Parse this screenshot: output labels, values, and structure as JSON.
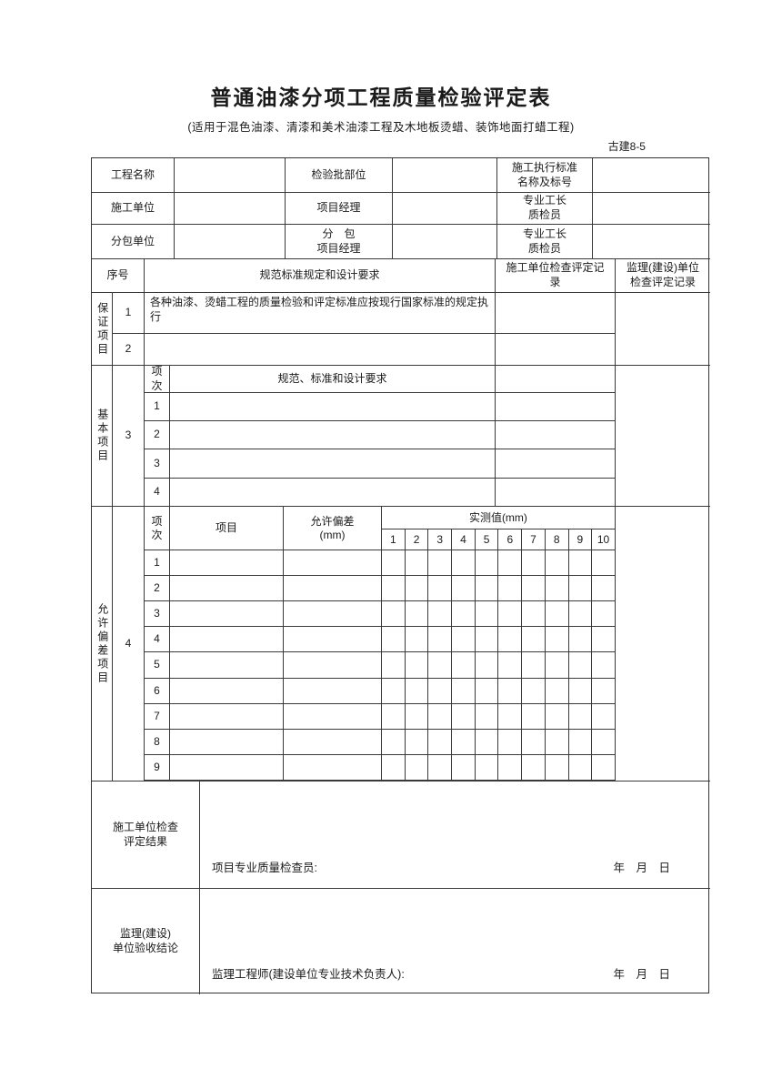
{
  "form_code": "古建8-5",
  "title": "普通油漆分项工程质量检验评定表",
  "subtitle": "(适用于混色油漆、清漆和美术油漆工程及木地板烫蜡、装饰地面打蜡工程)",
  "info": {
    "project_name_label": "工程名称",
    "project_name_value": "",
    "inspection_batch_label": "检验批部位",
    "inspection_batch_value": "",
    "exec_standard_label": "施工执行标准\n名称及标号",
    "exec_standard_value": "",
    "construction_unit_label": "施工单位",
    "construction_unit_value": "",
    "project_manager_label": "项目经理",
    "project_manager_value": "",
    "foreman_qc_label_1": "专业工长\n质检员",
    "foreman_qc_value_1": "",
    "subcontractor_label": "分包单位",
    "subcontractor_value": "",
    "sub_project_manager_label": "分　包\n项目经理",
    "sub_project_manager_value": "",
    "foreman_qc_label_2": "专业工长\n质检员",
    "foreman_qc_value_2": ""
  },
  "body_header": {
    "seq": "序号",
    "requirement": "规范标准规定和设计要求",
    "constructor_record": "施工单位检查评定记\n录",
    "supervisor_record": "监理(建设)单位\n检查评定记录"
  },
  "guarantee": {
    "section_label": "保证项目",
    "rows": [
      {
        "no": "1",
        "text": "各种油漆、烫蜡工程的质量检验和评定标准应按现行国家标准的规定执行"
      },
      {
        "no": "2",
        "text": ""
      }
    ]
  },
  "basic": {
    "section_label": "基本项目",
    "seq_no": "3",
    "item_no_header": "项\n次",
    "requirement_header": "规范、标准和设计要求",
    "rows": [
      "1",
      "2",
      "3",
      "4"
    ]
  },
  "deviation": {
    "section_label": "允许偏差项目",
    "seq_no": "4",
    "item_no_header": "项\n次",
    "item_header": "项目",
    "tolerance_header": "允许偏差\n(mm)",
    "measured_header": "实测值(mm)",
    "measure_cols": [
      "1",
      "2",
      "3",
      "4",
      "5",
      "6",
      "7",
      "8",
      "9",
      "10"
    ],
    "rows": [
      "1",
      "2",
      "3",
      "4",
      "5",
      "6",
      "7",
      "8",
      "9"
    ]
  },
  "footer": {
    "constructor_result_label": "施工单位检查\n评定结果",
    "constructor_sign_label": "项目专业质量检查员:",
    "constructor_sign_date": "年　月　日",
    "supervisor_result_label": "监理(建设)\n单位验收结论",
    "supervisor_sign_label": "监理工程师(建设单位专业技术负责人):",
    "supervisor_sign_date": "年　月　日"
  }
}
